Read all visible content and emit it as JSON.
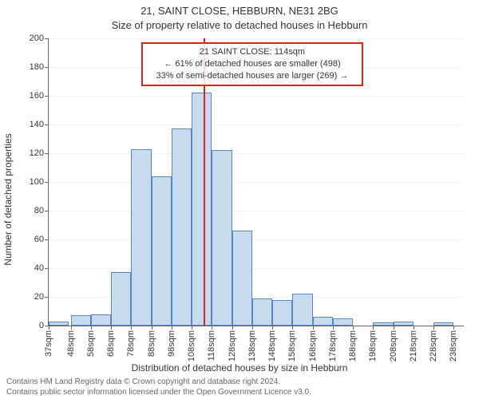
{
  "header": {
    "line1": "21, SAINT CLOSE, HEBBURN, NE31 2BG",
    "line2": "Size of property relative to detached houses in Hebburn"
  },
  "chart": {
    "type": "histogram",
    "background_color": "#ffffff",
    "bar_fill": "#c7dbee",
    "bar_border": "#5b84c4",
    "axis_color": "#666666",
    "grid_color": "#666666",
    "ref_line_color": "#e02020",
    "annotation_border": "#e02020",
    "y_label": "Number of detached properties",
    "x_label": "Distribution of detached houses by size in Hebburn",
    "y_ticks": [
      0,
      20,
      40,
      60,
      80,
      100,
      120,
      140,
      160,
      180,
      200
    ],
    "ylim": [
      0,
      200
    ],
    "x_ticks": [
      "37sqm",
      "48sqm",
      "58sqm",
      "68sqm",
      "78sqm",
      "88sqm",
      "98sqm",
      "108sqm",
      "118sqm",
      "128sqm",
      "138sqm",
      "148sqm",
      "158sqm",
      "168sqm",
      "178sqm",
      "188sqm",
      "198sqm",
      "208sqm",
      "218sqm",
      "228sqm",
      "238sqm"
    ],
    "xlim": [
      37,
      243
    ],
    "bar_x_width_sqm": 10,
    "bars": [
      {
        "x": 37,
        "v": 3
      },
      {
        "x": 48,
        "v": 7
      },
      {
        "x": 58,
        "v": 8
      },
      {
        "x": 68,
        "v": 37
      },
      {
        "x": 78,
        "v": 123
      },
      {
        "x": 88,
        "v": 104
      },
      {
        "x": 98,
        "v": 137
      },
      {
        "x": 108,
        "v": 162
      },
      {
        "x": 118,
        "v": 122
      },
      {
        "x": 128,
        "v": 66
      },
      {
        "x": 138,
        "v": 19
      },
      {
        "x": 148,
        "v": 18
      },
      {
        "x": 158,
        "v": 22
      },
      {
        "x": 168,
        "v": 6
      },
      {
        "x": 178,
        "v": 5
      },
      {
        "x": 188,
        "v": 0
      },
      {
        "x": 198,
        "v": 2
      },
      {
        "x": 208,
        "v": 3
      },
      {
        "x": 218,
        "v": 0
      },
      {
        "x": 228,
        "v": 2
      },
      {
        "x": 238,
        "v": 0
      }
    ],
    "reference_x": 114,
    "annotation": {
      "line1": "21 SAINT CLOSE: 114sqm",
      "line2": "← 61% of detached houses are smaller (498)",
      "line3": "33% of semi-detached houses are larger (269) →",
      "box_left_sqm": 83,
      "box_top_yval": 197,
      "box_width_sqm": 110
    }
  },
  "footer": {
    "line1": "Contains HM Land Registry data © Crown copyright and database right 2024.",
    "line2": "Contains public sector information licensed under the Open Government Licence v3.0."
  }
}
